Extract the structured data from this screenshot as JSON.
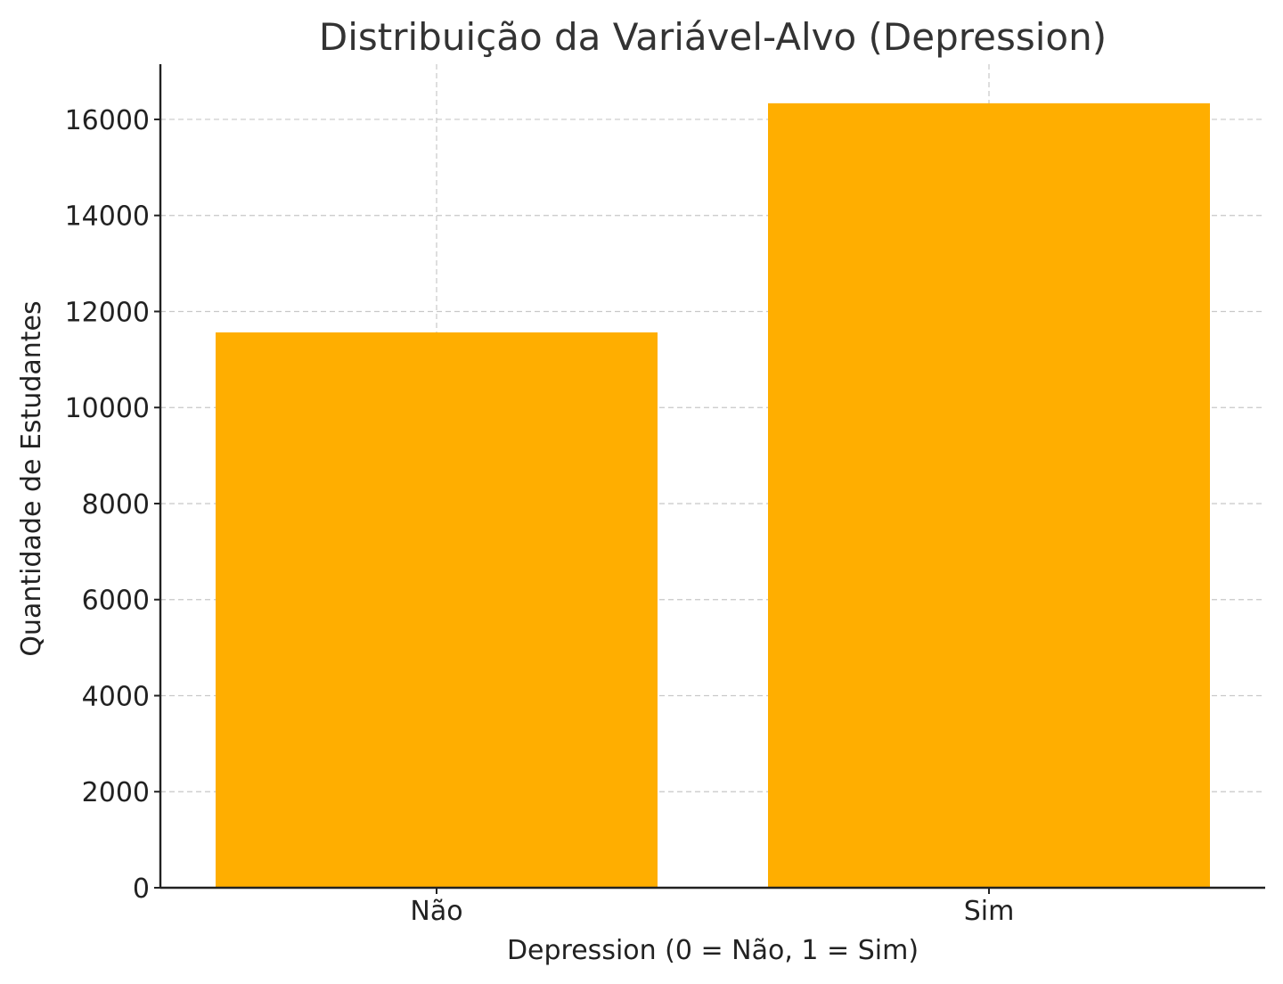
{
  "chart_data": {
    "type": "bar",
    "title": "Distribuição da Variável-Alvo (Depression)",
    "xlabel": "Depression (0 = Não, 1 = Sim)",
    "ylabel": "Quantidade de Estudantes",
    "categories": [
      "Não",
      "Sim"
    ],
    "values": [
      11565,
      16336
    ],
    "ylim": [
      0,
      17150
    ],
    "yticks": [
      0,
      2000,
      4000,
      6000,
      8000,
      10000,
      12000,
      14000,
      16000
    ],
    "ytick_labels": [
      "0",
      "2000",
      "4000",
      "6000",
      "8000",
      "10000",
      "12000",
      "14000",
      "16000"
    ],
    "grid": true,
    "bar_color": "#ffae00"
  }
}
